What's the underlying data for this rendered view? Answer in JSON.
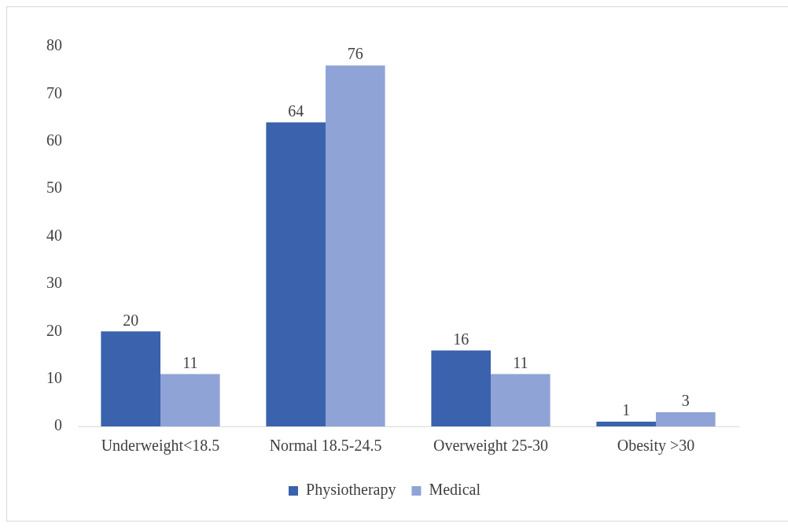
{
  "chart_data": {
    "type": "bar",
    "categories": [
      "Underweight<18.5",
      "Normal 18.5-24.5",
      "Overweight 25-30",
      "Obesity >30"
    ],
    "series": [
      {
        "name": "Physiotherapy",
        "color": "#3a62ad",
        "values": [
          20,
          64,
          16,
          1
        ]
      },
      {
        "name": "Medical",
        "color": "#8fa3d6",
        "values": [
          11,
          76,
          11,
          3
        ]
      }
    ],
    "ylim": [
      0,
      80
    ],
    "yticks": [
      0,
      10,
      20,
      30,
      40,
      50,
      60,
      70,
      80
    ],
    "grid": false,
    "legend": "bottom",
    "data_labels": true
  }
}
